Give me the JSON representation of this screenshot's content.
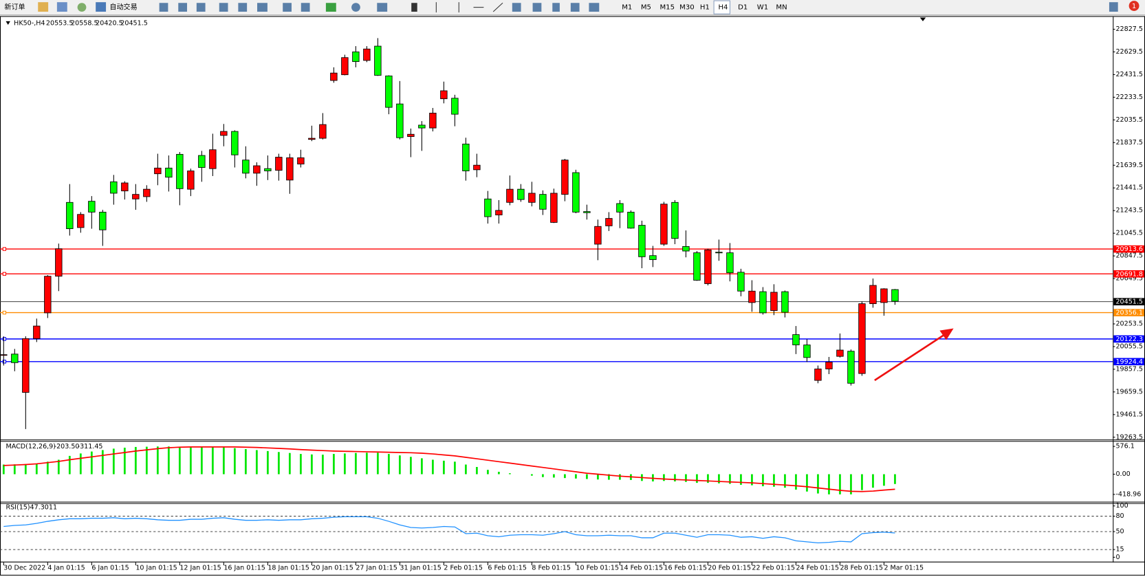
{
  "toolbar": {
    "new_order": "新订单",
    "auto_trading": "自动交易",
    "timeframes": [
      "M1",
      "M5",
      "M15",
      "M30",
      "H1",
      "H4",
      "D1",
      "W1",
      "MN"
    ],
    "notifications": 1
  },
  "chart_data": [
    {
      "type": "candlestick",
      "title": "HK50-,H4",
      "up_color": "#ff0000",
      "down_color": "#00ff00",
      "bid_line_color": "#404040",
      "categories": [
        "30 Dec 2022",
        null,
        null,
        null,
        "4 Jan 01:15",
        null,
        null,
        null,
        "6 Jan 01:15",
        null,
        null,
        null,
        "10 Jan 01:15",
        null,
        null,
        null,
        "12 Jan 01:15",
        null,
        null,
        null,
        "16 Jan 01:15",
        null,
        null,
        null,
        "18 Jan 01:15",
        null,
        null,
        null,
        "20 Jan 01:15",
        null,
        null,
        null,
        "27 Jan 01:15",
        null,
        null,
        null,
        "31 Jan 01:15",
        null,
        null,
        null,
        "2 Feb 01:15",
        null,
        null,
        null,
        "6 Feb 01:15",
        null,
        null,
        null,
        "8 Feb 01:15",
        null,
        null,
        null,
        "10 Feb 01:15",
        null,
        null,
        null,
        "14 Feb 01:15",
        null,
        null,
        null,
        "16 Feb 01:15",
        null,
        null,
        null,
        "20 Feb 01:15",
        null,
        null,
        null,
        "22 Feb 01:15",
        null,
        null,
        null,
        "24 Feb 01:15",
        null,
        null,
        null,
        "28 Feb 01:15",
        null,
        null,
        null,
        "2 Mar 01:15",
        null
      ],
      "open": [
        19980,
        19990,
        19655,
        20125,
        20350,
        20670,
        21315,
        21095,
        21325,
        21230,
        21495,
        21415,
        21345,
        21365,
        21565,
        21615,
        21735,
        21430,
        21725,
        21610,
        21900,
        21935,
        21685,
        21570,
        21610,
        21595,
        21510,
        21650,
        21865,
        21875,
        22380,
        22430,
        22630,
        22555,
        22680,
        22420,
        22175,
        21890,
        21990,
        21965,
        22220,
        22225,
        21825,
        21600,
        21345,
        21205,
        21315,
        21430,
        21315,
        21385,
        21140,
        21385,
        21575,
        21235,
        20950,
        21110,
        21305,
        21230,
        21115,
        20850,
        20950,
        21315,
        20930,
        20875,
        20605,
        20880,
        20875,
        20705,
        20440,
        20535,
        20370,
        20535,
        20160,
        20070,
        19760,
        19860,
        19970,
        20015,
        19820,
        20430,
        20440,
        20553.5
      ],
      "high": [
        20145,
        20035,
        20145,
        20300,
        20680,
        20955,
        21475,
        21230,
        21370,
        21250,
        21555,
        21500,
        21475,
        21465,
        21740,
        21725,
        21755,
        21610,
        21765,
        21915,
        22000,
        21945,
        21805,
        21665,
        21725,
        21740,
        21740,
        21775,
        21985,
        22095,
        22495,
        22605,
        22680,
        22680,
        22750,
        22425,
        22375,
        21960,
        22025,
        22140,
        22370,
        22255,
        21880,
        21740,
        21415,
        21335,
        21550,
        21475,
        21495,
        21420,
        21435,
        21695,
        21600,
        21295,
        21165,
        21230,
        21335,
        21245,
        21155,
        20935,
        21320,
        21335,
        21070,
        20890,
        20910,
        20990,
        20960,
        20735,
        20635,
        20575,
        20600,
        20545,
        20235,
        20120,
        19890,
        19965,
        20170,
        20030,
        20450,
        20650,
        20565,
        20558.5
      ],
      "low": [
        19890,
        19840,
        19335,
        20095,
        20305,
        20540,
        21025,
        21050,
        21085,
        20935,
        21295,
        21340,
        21250,
        21320,
        21465,
        21410,
        21290,
        21370,
        21495,
        21545,
        21805,
        21620,
        21525,
        21460,
        21510,
        21505,
        21390,
        21620,
        21850,
        21865,
        22360,
        22425,
        22495,
        22540,
        22420,
        22085,
        21865,
        21710,
        21765,
        21935,
        22180,
        21980,
        21505,
        21535,
        21130,
        21130,
        21290,
        21320,
        21280,
        21205,
        21135,
        21325,
        21220,
        21165,
        20810,
        21065,
        21090,
        21085,
        20740,
        20750,
        20935,
        20950,
        20835,
        20630,
        20590,
        20805,
        20625,
        20495,
        20360,
        20335,
        20330,
        20310,
        19990,
        19920,
        19735,
        19815,
        19960,
        19715,
        19800,
        20395,
        20325,
        20420.5
      ],
      "close": [
        19985,
        19915,
        20125,
        20235,
        20670,
        20910,
        21085,
        21210,
        21230,
        21075,
        21395,
        21485,
        21385,
        21430,
        21615,
        21535,
        21435,
        21590,
        21620,
        21775,
        21935,
        21730,
        21570,
        21635,
        21590,
        21710,
        21705,
        21705,
        21875,
        21995,
        22445,
        22580,
        22545,
        22655,
        22425,
        22145,
        21880,
        21910,
        21965,
        22095,
        22290,
        22085,
        21590,
        21640,
        21190,
        21245,
        21430,
        21340,
        21395,
        21255,
        21395,
        21685,
        21230,
        21225,
        21105,
        21175,
        21230,
        21090,
        20840,
        20815,
        21300,
        21000,
        20890,
        20635,
        20900,
        20875,
        20700,
        20540,
        20540,
        20350,
        20530,
        20355,
        20070,
        19960,
        19860,
        19920,
        20025,
        19735,
        20430,
        20590,
        20560,
        20451.5
      ],
      "ylim": [
        19250,
        22936
      ],
      "yticks": [
        22827.5,
        22629.5,
        22431.5,
        22233.5,
        22035.5,
        21837.5,
        21639.5,
        21441.5,
        21243.5,
        21045.5,
        20847.5,
        20649.5,
        20253.5,
        20055.5,
        19857.5,
        19659.5,
        19461.5,
        19263.5
      ],
      "levels": [
        {
          "value": 20913.6,
          "color": "#ff0000"
        },
        {
          "value": 20691.8,
          "color": "#ff0000"
        },
        {
          "value": 20356.1,
          "color": "#ff8c00"
        },
        {
          "value": 20122.3,
          "color": "#0000ff"
        },
        {
          "value": 19924.4,
          "color": "#0000ff"
        }
      ]
    },
    {
      "type": "macd",
      "title": "MACD(12,26,9)",
      "ylim": [
        -570,
        674
      ],
      "yticks": [
        576.1,
        {
          "value": 0,
          "label": "0.00"
        },
        -418.96
      ],
      "series": [
        {
          "name": "MACD",
          "color": "#00e600",
          "values": [
            200,
            205,
            210,
            220,
            260,
            300,
            380,
            430,
            470,
            500,
            530,
            550,
            565,
            570,
            575,
            575,
            570,
            565,
            560,
            560,
            555,
            540,
            520,
            500,
            480,
            460,
            440,
            420,
            410,
            405,
            420,
            430,
            440,
            445,
            445,
            420,
            390,
            360,
            330,
            300,
            280,
            260,
            200,
            150,
            90,
            50,
            20,
            0,
            -30,
            -60,
            -70,
            -80,
            -90,
            -100,
            -110,
            -115,
            -115,
            -120,
            -140,
            -150,
            -140,
            -150,
            -160,
            -180,
            -180,
            -190,
            -200,
            -220,
            -230,
            -250,
            -260,
            -280,
            -320,
            -360,
            -400,
            -418,
            -418,
            -418,
            -330,
            -280,
            -240,
            -203.5
          ],
          "value_labels": [
            null,
            null,
            null,
            null,
            null,
            null,
            null,
            null,
            null,
            null,
            null,
            null,
            null,
            null,
            null,
            null,
            null,
            null,
            null,
            null,
            null,
            null,
            null,
            null,
            null,
            null,
            null,
            null,
            null,
            null,
            null,
            null,
            null,
            null,
            null,
            null,
            null,
            null,
            null,
            null,
            null,
            null,
            null,
            null,
            null,
            null,
            null,
            null,
            null,
            null,
            null,
            null,
            null,
            null,
            null,
            null,
            null,
            null,
            null,
            null,
            null,
            null,
            null,
            null,
            null,
            null,
            null,
            null,
            null,
            null,
            null,
            null,
            null,
            null,
            null,
            null,
            null,
            null,
            null,
            null,
            null,
            "-203.50"
          ]
        },
        {
          "name": "Signal",
          "color": "#ff0000",
          "values": [
            180,
            190,
            200,
            215,
            240,
            265,
            300,
            330,
            360,
            390,
            420,
            450,
            480,
            505,
            530,
            550,
            560,
            565,
            565,
            565,
            565,
            565,
            560,
            555,
            545,
            535,
            525,
            510,
            500,
            490,
            480,
            475,
            470,
            465,
            460,
            455,
            450,
            445,
            435,
            420,
            400,
            380,
            350,
            320,
            290,
            260,
            230,
            200,
            170,
            140,
            110,
            80,
            50,
            20,
            0,
            -20,
            -40,
            -55,
            -70,
            -85,
            -100,
            -110,
            -120,
            -130,
            -140,
            -150,
            -160,
            -170,
            -180,
            -195,
            -210,
            -225,
            -240,
            -260,
            -285,
            -310,
            -335,
            -355,
            -360,
            -350,
            -330,
            -311.45
          ]
        }
      ]
    },
    {
      "type": "rsi",
      "title": "RSI(15)",
      "ylim": [
        -8.5,
        104
      ],
      "yticks": [
        100,
        80,
        50,
        15,
        0
      ],
      "dashed_levels": [
        80,
        50,
        15
      ],
      "series": [
        {
          "name": "RSI",
          "color": "#1e90ff",
          "values": [
            60,
            62,
            63,
            66,
            70,
            73,
            75,
            75,
            76,
            76,
            77,
            75,
            76,
            75,
            73,
            72,
            72,
            74,
            74,
            76,
            77,
            74,
            72,
            72,
            73,
            72,
            73,
            73,
            75,
            76,
            78,
            79,
            79,
            79,
            76,
            70,
            63,
            58,
            57,
            58,
            60,
            59,
            46,
            47,
            42,
            40,
            43,
            44,
            44,
            43,
            46,
            50,
            44,
            42,
            42,
            43,
            42,
            42,
            38,
            38,
            47,
            47,
            43,
            39,
            44,
            44,
            43,
            39,
            40,
            37,
            40,
            38,
            32,
            30,
            28,
            29,
            31,
            30,
            46,
            48,
            49,
            47.3011
          ]
        }
      ]
    }
  ]
}
